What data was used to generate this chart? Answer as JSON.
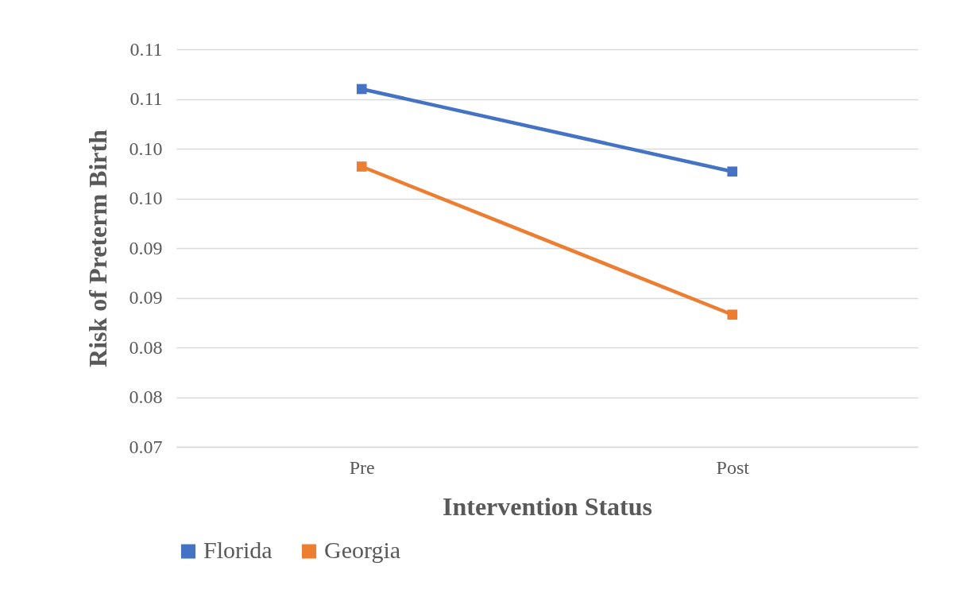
{
  "chart_data": {
    "type": "line",
    "xlabel": "Intervention Status",
    "ylabel": "Risk of Preterm Birth",
    "categories": [
      "Pre",
      "Post"
    ],
    "series": [
      {
        "name": "Florida",
        "color": "#4472c4",
        "values": [
          0.106,
          0.0977
        ]
      },
      {
        "name": "Georgia",
        "color": "#ed7d31",
        "values": [
          0.0982,
          0.0833
        ]
      }
    ],
    "ylim": [
      0.07,
      0.11
    ],
    "yticks": [
      {
        "value": 0.07,
        "label": "0.07"
      },
      {
        "value": 0.075,
        "label": "0.08"
      },
      {
        "value": 0.08,
        "label": "0.08"
      },
      {
        "value": 0.085,
        "label": "0.09"
      },
      {
        "value": 0.09,
        "label": "0.09"
      },
      {
        "value": 0.095,
        "label": "0.10"
      },
      {
        "value": 0.1,
        "label": "0.10"
      },
      {
        "value": 0.105,
        "label": "0.11"
      },
      {
        "value": 0.11,
        "label": "0.11"
      }
    ],
    "grid": "y",
    "legend": "bottom",
    "marker": "square",
    "line_style": "solid"
  }
}
